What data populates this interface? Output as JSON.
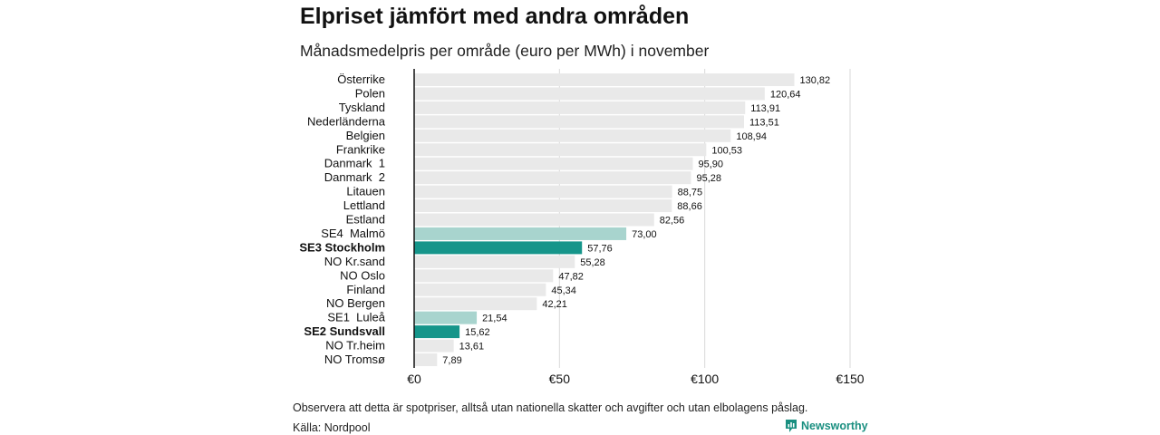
{
  "title": "Elpriset jämfört med andra områden",
  "subtitle": "Månadsmedelpris per område (euro per MWh) i november",
  "note": "Observera att detta är spotpriser, alltså utan nationella skatter och avgifter och utan elbolagens påslag.",
  "source": "Källa: Nordpool",
  "brand": {
    "name": "Newsworthy",
    "icon": "newsworthy-logo-icon"
  },
  "colors": {
    "default": "#e9e9e9",
    "se_light": "#a8d4ce",
    "se_dark": "#15958a",
    "grid": "#d9d9d9",
    "axis": "#111111"
  },
  "chart_data": {
    "type": "bar",
    "orientation": "horizontal",
    "title": "Elpriset jämfört med andra områden",
    "subtitle": "Månadsmedelpris per område (euro per MWh) i november",
    "categories": [
      "Österrike",
      "Polen",
      "Tyskland",
      "Nederländerna",
      "Belgien",
      "Frankrike",
      "Danmark  1",
      "Danmark  2",
      "Litauen",
      "Lettland",
      "Estland",
      "SE4  Malmö",
      "SE3 Stockholm",
      "NO Kr.sand",
      "NO Oslo",
      "Finland",
      "NO Bergen",
      "SE1  Luleå",
      "SE2 Sundsvall",
      "NO Tr.heim",
      "NO Tromsø"
    ],
    "values": [
      130.82,
      120.64,
      113.91,
      113.51,
      108.94,
      100.53,
      95.9,
      95.28,
      88.75,
      88.66,
      82.56,
      73.0,
      57.76,
      55.28,
      47.82,
      45.34,
      42.21,
      21.54,
      15.62,
      13.61,
      7.89
    ],
    "value_labels": [
      "130,82",
      "120,64",
      "113,91",
      "113,51",
      "108,94",
      "100,53",
      "95,90",
      "95,28",
      "88,75",
      "88,66",
      "82,56",
      "73,00",
      "57,76",
      "55,28",
      "47,82",
      "45,34",
      "42,21",
      "21,54",
      "15,62",
      "13,61",
      "7,89"
    ],
    "highlight": [
      "default",
      "default",
      "default",
      "default",
      "default",
      "default",
      "default",
      "default",
      "default",
      "default",
      "default",
      "light",
      "dark",
      "default",
      "default",
      "default",
      "default",
      "light",
      "dark",
      "default",
      "default"
    ],
    "bold_labels": [
      "SE3 Stockholm",
      "SE2 Sundsvall"
    ],
    "xlim": [
      0,
      150
    ],
    "xticks": [
      0,
      50,
      100,
      150
    ],
    "xtick_labels": [
      "€0",
      "€50",
      "€100",
      "€150"
    ],
    "xlabel": "",
    "ylabel": "",
    "grid": true
  }
}
